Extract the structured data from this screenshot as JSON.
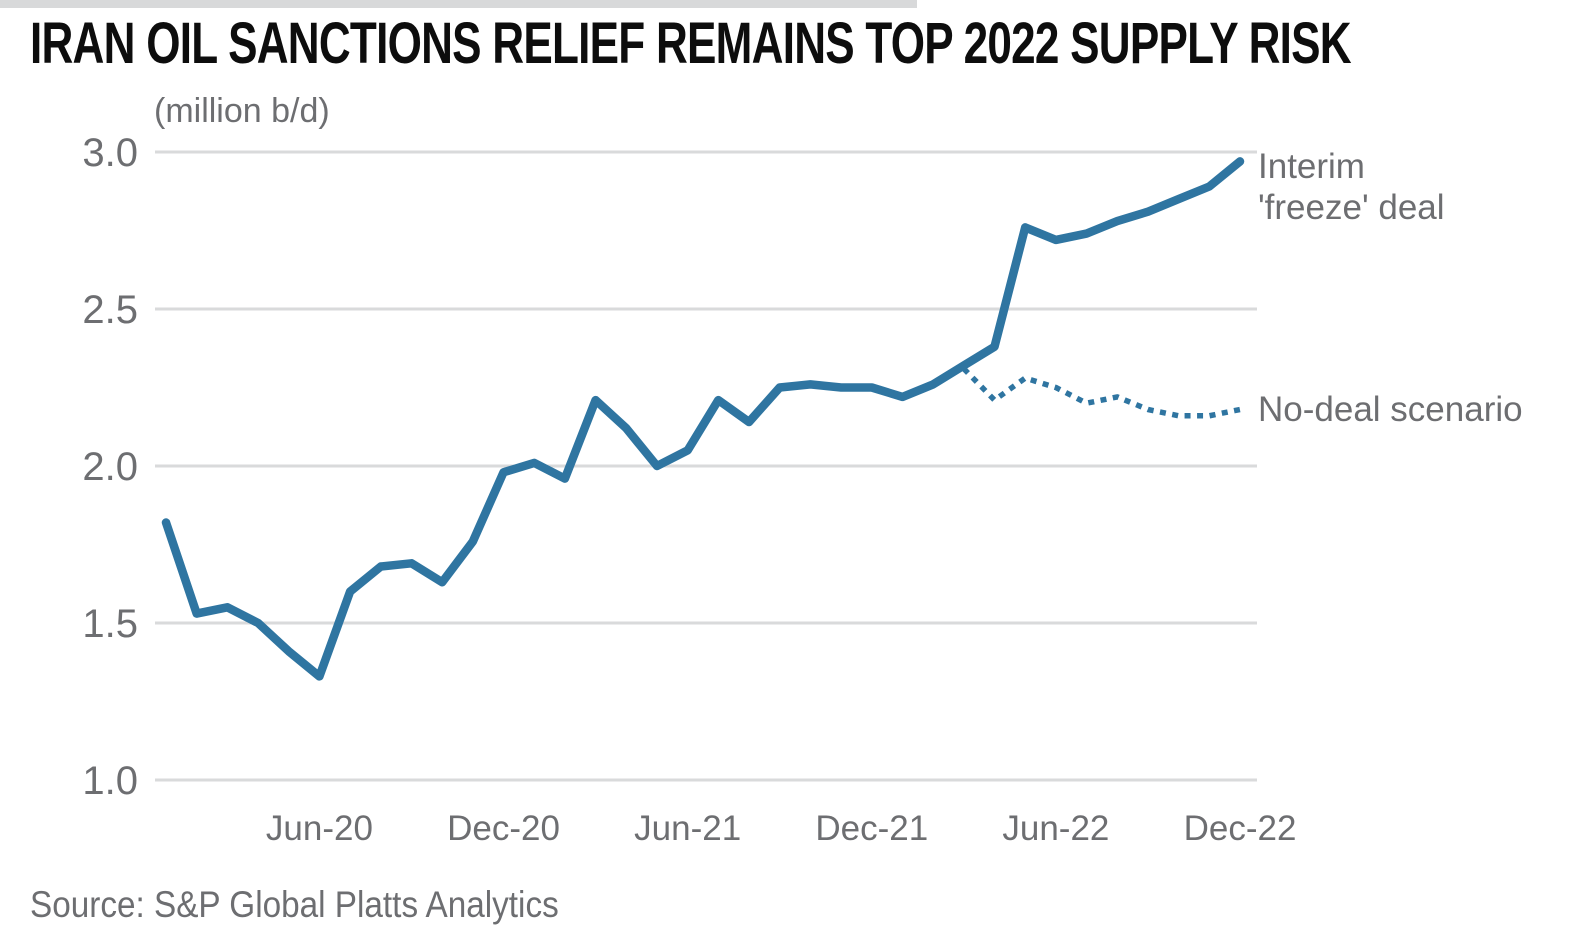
{
  "colors": {
    "line_blue": "#2f75a1",
    "label_gray": "#6d6e71",
    "gridline_gray": "#d9dadb",
    "title_black": "#0d0d0d",
    "topbar_gray": "#d8d9da"
  },
  "chart_data": {
    "type": "line",
    "title": "IRAN OIL SANCTIONS RELIEF REMAINS TOP 2022 SUPPLY RISK",
    "unit_label": "(million b/d)",
    "source": "Source: S&P Global Platts Analytics",
    "grid": "horizontal-only",
    "legend_position": "right-end-line-annotations",
    "x_unit": "month",
    "x_start_label": "Jan-20",
    "x_end_label": "Dec-22",
    "ylim": [
      1.0,
      3.0
    ],
    "y_axis": {
      "ticks": [
        {
          "label": "3.0",
          "value": 3.0
        },
        {
          "label": "2.5",
          "value": 2.5
        },
        {
          "label": "2.0",
          "value": 2.0
        },
        {
          "label": "1.5",
          "value": 1.5
        },
        {
          "label": "1.0",
          "value": 1.0
        }
      ]
    },
    "x_axis": {
      "ticks": [
        {
          "label": "Jun-20",
          "month_index": 5
        },
        {
          "label": "Dec-20",
          "month_index": 11
        },
        {
          "label": "Jun-21",
          "month_index": 17
        },
        {
          "label": "Dec-21",
          "month_index": 23
        },
        {
          "label": "Jun-22",
          "month_index": 29
        },
        {
          "label": "Dec-22",
          "month_index": 35
        }
      ]
    },
    "series": [
      {
        "name": "Interim 'freeze' deal",
        "label_lines": [
          "Interim",
          "'freeze' deal"
        ],
        "style": "solid",
        "start_month_index": 0,
        "start_month_label": "Jan-20",
        "values": [
          1.82,
          1.53,
          1.55,
          1.5,
          1.41,
          1.33,
          1.6,
          1.68,
          1.69,
          1.63,
          1.76,
          1.98,
          2.01,
          1.96,
          2.21,
          2.12,
          2.0,
          2.05,
          2.21,
          2.14,
          2.25,
          2.26,
          2.25,
          2.25,
          2.22,
          2.26,
          2.32,
          2.38,
          2.76,
          2.72,
          2.74,
          2.78,
          2.81,
          2.85,
          2.89,
          2.97
        ]
      },
      {
        "name": "No-deal scenario",
        "label_lines": [
          "No-deal scenario"
        ],
        "style": "dotted",
        "start_month_index": 26,
        "start_month_label": "Mar-22",
        "values": [
          2.31,
          2.21,
          2.28,
          2.25,
          2.2,
          2.22,
          2.18,
          2.16,
          2.16,
          2.18
        ]
      }
    ]
  }
}
